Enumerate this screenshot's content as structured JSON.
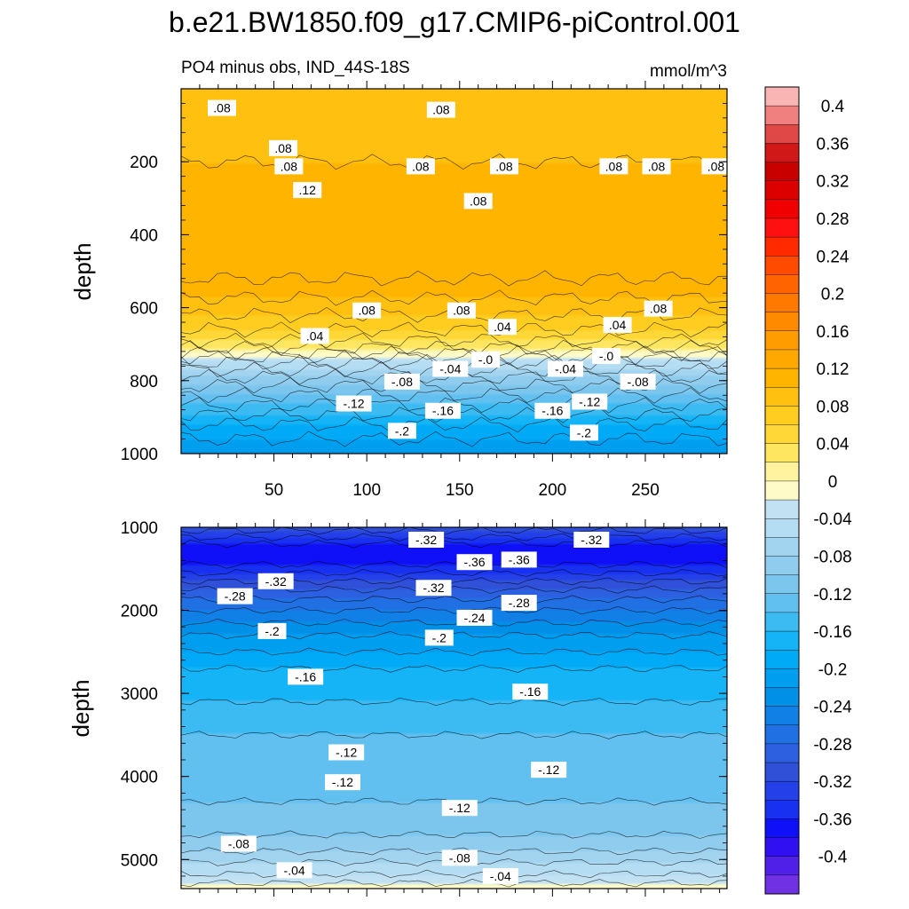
{
  "title": "b.e21.BW1850.f09_g17.CMIP6-piControl.001",
  "left_subtitle": "PO4 minus obs, IND_44S-18S",
  "units": "mmol/m^3",
  "chart_data": [
    {
      "type": "heatmap",
      "panel": "upper",
      "ylabel": "depth",
      "x_ticks": [
        "50",
        "100",
        "150",
        "200",
        "250"
      ],
      "x_tick_values": [
        50,
        100,
        150,
        200,
        250
      ],
      "xlim": [
        0,
        294
      ],
      "y_ticks": [
        "200",
        "400",
        "600",
        "800",
        "1000"
      ],
      "y_tick_values": [
        200,
        400,
        600,
        800,
        1000
      ],
      "ylim": [
        0,
        1000
      ],
      "y_inverted": true,
      "profile": {
        "depth": [
          0,
          200,
          400,
          520,
          600,
          640,
          680,
          710,
          725,
          740,
          770,
          800,
          840,
          880,
          920,
          960,
          1000
        ],
        "value": [
          0.09,
          0.1,
          0.12,
          0.12,
          0.09,
          0.07,
          0.05,
          0.02,
          0.0,
          -0.03,
          -0.06,
          -0.09,
          -0.12,
          -0.15,
          -0.18,
          -0.2,
          -0.22
        ]
      },
      "contour_labels": [
        {
          "text": ".08",
          "x": 22,
          "depth": 55
        },
        {
          "text": ".08",
          "x": 140,
          "depth": 60
        },
        {
          "text": ".08",
          "x": 58,
          "depth": 215
        },
        {
          "text": ".08",
          "x": 55,
          "depth": 165
        },
        {
          "text": ".12",
          "x": 68,
          "depth": 280
        },
        {
          "text": ".08",
          "x": 129,
          "depth": 215
        },
        {
          "text": ".08",
          "x": 174,
          "depth": 215
        },
        {
          "text": ".08",
          "x": 233,
          "depth": 215
        },
        {
          "text": ".08",
          "x": 256,
          "depth": 215
        },
        {
          "text": ".08",
          "x": 288,
          "depth": 215
        },
        {
          "text": ".08",
          "x": 160,
          "depth": 310
        },
        {
          "text": ".08",
          "x": 100,
          "depth": 610
        },
        {
          "text": ".08",
          "x": 151,
          "depth": 610
        },
        {
          "text": ".08",
          "x": 257,
          "depth": 605
        },
        {
          "text": ".04",
          "x": 72,
          "depth": 680
        },
        {
          "text": ".04",
          "x": 173,
          "depth": 655
        },
        {
          "text": ".04",
          "x": 235,
          "depth": 650
        },
        {
          "text": "-.0",
          "x": 164,
          "depth": 745
        },
        {
          "text": "-.0",
          "x": 229,
          "depth": 735
        },
        {
          "text": "-.04",
          "x": 145,
          "depth": 770
        },
        {
          "text": "-.04",
          "x": 207,
          "depth": 770
        },
        {
          "text": "-.08",
          "x": 119,
          "depth": 805
        },
        {
          "text": "-.08",
          "x": 246,
          "depth": 805
        },
        {
          "text": "-.12",
          "x": 93,
          "depth": 865
        },
        {
          "text": "-.12",
          "x": 220,
          "depth": 860
        },
        {
          "text": "-.16",
          "x": 141,
          "depth": 885
        },
        {
          "text": "-.16",
          "x": 200,
          "depth": 885
        },
        {
          "text": "-.2",
          "x": 119,
          "depth": 940
        },
        {
          "text": "-.2",
          "x": 217,
          "depth": 945
        }
      ]
    },
    {
      "type": "heatmap",
      "panel": "lower",
      "ylabel": "depth",
      "xlim": [
        0,
        294
      ],
      "y_ticks": [
        "1000",
        "2000",
        "3000",
        "4000",
        "5000"
      ],
      "y_tick_values": [
        1000,
        2000,
        3000,
        4000,
        5000
      ],
      "ylim": [
        1000,
        5350
      ],
      "y_inverted": true,
      "profile": {
        "depth": [
          1000,
          1200,
          1400,
          1600,
          1800,
          2000,
          2300,
          2700,
          3100,
          3500,
          3900,
          4300,
          4600,
          4900,
          5100,
          5250,
          5350
        ],
        "value": [
          -0.31,
          -0.36,
          -0.37,
          -0.33,
          -0.29,
          -0.26,
          -0.22,
          -0.18,
          -0.16,
          -0.14,
          -0.13,
          -0.12,
          -0.11,
          -0.08,
          -0.05,
          -0.03,
          0.0
        ]
      },
      "contour_labels": [
        {
          "text": "-.32",
          "x": 132,
          "depth": 1160
        },
        {
          "text": "-.32",
          "x": 221,
          "depth": 1160
        },
        {
          "text": "-.36",
          "x": 158,
          "depth": 1430
        },
        {
          "text": "-.36",
          "x": 182,
          "depth": 1400
        },
        {
          "text": "-.32",
          "x": 51,
          "depth": 1660
        },
        {
          "text": "-.32",
          "x": 136,
          "depth": 1740
        },
        {
          "text": "-.28",
          "x": 29,
          "depth": 1840
        },
        {
          "text": "-.28",
          "x": 182,
          "depth": 1920
        },
        {
          "text": "-.24",
          "x": 158,
          "depth": 2100
        },
        {
          "text": "-.2",
          "x": 49,
          "depth": 2260
        },
        {
          "text": "-.2",
          "x": 139,
          "depth": 2340
        },
        {
          "text": "-.16",
          "x": 67,
          "depth": 2810
        },
        {
          "text": "-.16",
          "x": 188,
          "depth": 2990
        },
        {
          "text": "-.12",
          "x": 89,
          "depth": 3720
        },
        {
          "text": "-.12",
          "x": 198,
          "depth": 3930
        },
        {
          "text": "-.12",
          "x": 87,
          "depth": 4080
        },
        {
          "text": "-.12",
          "x": 150,
          "depth": 4390
        },
        {
          "text": "-.08",
          "x": 31,
          "depth": 4820
        },
        {
          "text": "-.08",
          "x": 150,
          "depth": 4990
        },
        {
          "text": "-.04",
          "x": 61,
          "depth": 5140
        },
        {
          "text": "-.04",
          "x": 172,
          "depth": 5210
        }
      ]
    }
  ],
  "colorbar": {
    "labels": [
      "0.4",
      "0.36",
      "0.32",
      "0.28",
      "0.24",
      "0.2",
      "0.16",
      "0.12",
      "0.08",
      "0.04",
      "0",
      "-0.04",
      "-0.08",
      "-0.12",
      "-0.16",
      "-0.2",
      "-0.24",
      "-0.28",
      "-0.32",
      "-0.36",
      "-0.4"
    ],
    "label_values": [
      0.4,
      0.36,
      0.32,
      0.28,
      0.24,
      0.2,
      0.16,
      0.12,
      0.08,
      0.04,
      0,
      -0.04,
      -0.08,
      -0.12,
      -0.16,
      -0.2,
      -0.24,
      -0.28,
      -0.32,
      -0.36,
      -0.4
    ],
    "interval": 0.02,
    "colors": [
      "#f9b4b4",
      "#f08080",
      "#e04848",
      "#d01818",
      "#c80000",
      "#dc0000",
      "#f00000",
      "#ff1010",
      "#ff2a00",
      "#ff4a00",
      "#ff6400",
      "#ff7800",
      "#ff8a00",
      "#ff9c00",
      "#ffa800",
      "#ffb400",
      "#ffc010",
      "#ffcc20",
      "#ffd838",
      "#ffe660",
      "#fff3a0",
      "#fffbc8",
      "#c2e2f4",
      "#b4dcf2",
      "#a2d4f0",
      "#90ccee",
      "#7cc6ee",
      "#62c0f0",
      "#3cbaf2",
      "#14b4f6",
      "#00aaf6",
      "#009eef",
      "#0090e8",
      "#1080e6",
      "#2070e4",
      "#2c60e0",
      "#3050d8",
      "#2440e8",
      "#1830f0",
      "#1010f8",
      "#3010f0",
      "#5020e8",
      "#7030e4"
    ]
  }
}
